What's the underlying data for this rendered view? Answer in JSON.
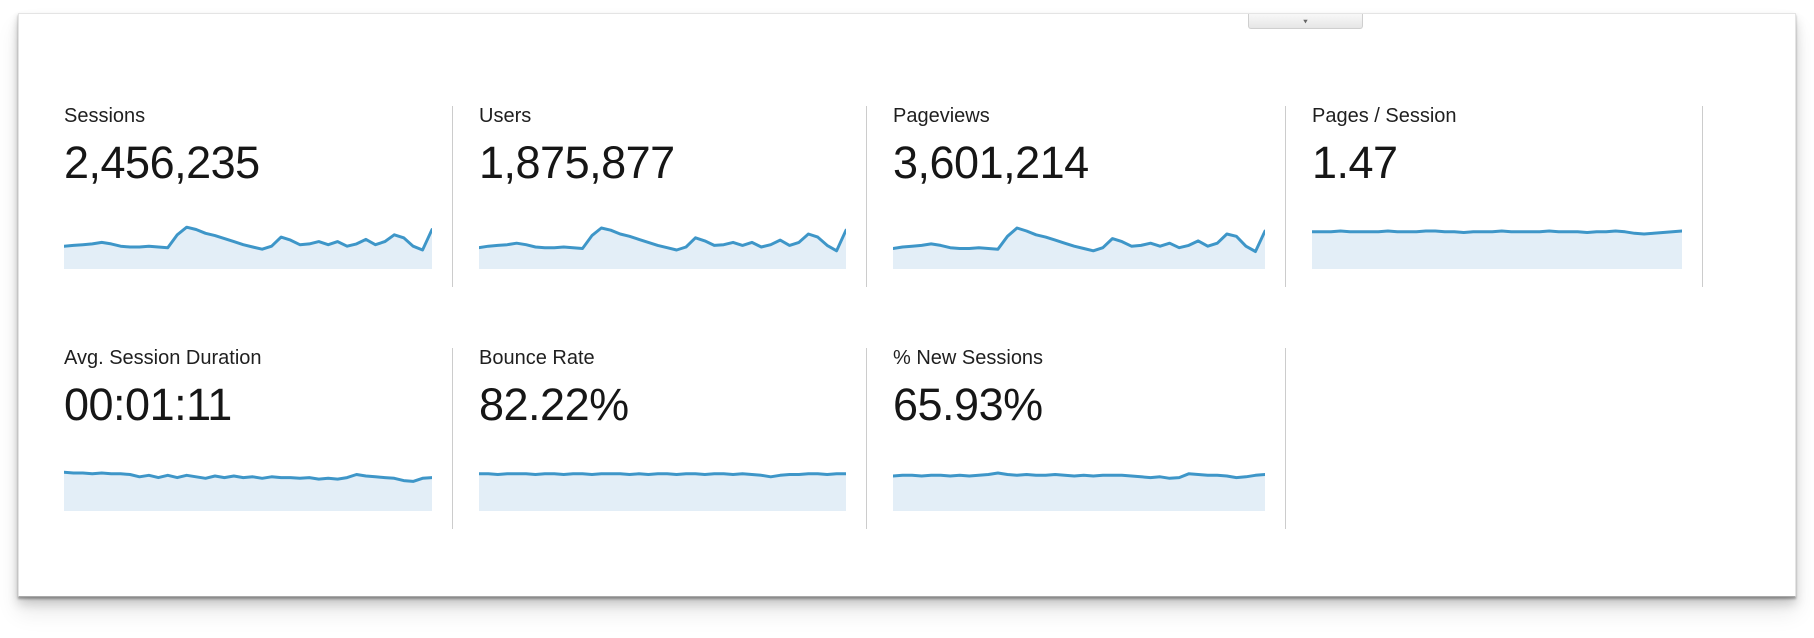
{
  "accent": {
    "line_color": "#3e96c8",
    "fill_color": "#e3eef7",
    "divider_color": "#cccccc"
  },
  "collapse_tab": {
    "chevron_icon": "▾"
  },
  "metrics": {
    "row1": [
      {
        "label": "Sessions",
        "value": "2,456,235",
        "sparkline": [
          30,
          31,
          32,
          33,
          35,
          33,
          30,
          29,
          29,
          30,
          29,
          28,
          45,
          55,
          52,
          47,
          44,
          40,
          36,
          32,
          29,
          26,
          30,
          42,
          38,
          32,
          33,
          36,
          32,
          36,
          30,
          33,
          39,
          32,
          36,
          45,
          41,
          30,
          25,
          52
        ]
      },
      {
        "label": "Users",
        "value": "1,875,877",
        "sparkline": [
          28,
          30,
          31,
          32,
          34,
          32,
          29,
          28,
          28,
          29,
          28,
          27,
          44,
          54,
          51,
          46,
          43,
          39,
          35,
          31,
          28,
          25,
          29,
          41,
          37,
          31,
          32,
          35,
          31,
          35,
          29,
          32,
          38,
          31,
          35,
          46,
          42,
          31,
          24,
          51
        ]
      },
      {
        "label": "Pageviews",
        "value": "3,601,214",
        "sparkline": [
          27,
          29,
          30,
          31,
          33,
          31,
          28,
          27,
          27,
          28,
          27,
          26,
          43,
          54,
          50,
          45,
          42,
          38,
          34,
          30,
          27,
          24,
          28,
          40,
          36,
          30,
          31,
          34,
          30,
          34,
          28,
          31,
          37,
          30,
          34,
          46,
          43,
          30,
          23,
          50
        ]
      },
      {
        "label": "Pages / Session",
        "value": "1.47",
        "sparkline": [
          49,
          49,
          49,
          50,
          49,
          49,
          49,
          49,
          50,
          49,
          49,
          49,
          50,
          50,
          49,
          49,
          48,
          49,
          49,
          49,
          50,
          49,
          49,
          49,
          49,
          50,
          49,
          49,
          49,
          48,
          49,
          49,
          50,
          49,
          47,
          46,
          47,
          48,
          49,
          50
        ]
      }
    ],
    "row2": [
      {
        "label": "Avg. Session Duration",
        "value": "00:01:11",
        "sparkline": [
          51,
          50,
          50,
          49,
          50,
          49,
          49,
          48,
          45,
          47,
          44,
          47,
          44,
          47,
          45,
          43,
          46,
          44,
          46,
          44,
          45,
          43,
          45,
          44,
          44,
          43,
          44,
          42,
          43,
          42,
          44,
          48,
          46,
          45,
          44,
          43,
          40,
          39,
          43,
          44
        ]
      },
      {
        "label": "Bounce Rate",
        "value": "82.22%",
        "sparkline": [
          49,
          49,
          48,
          49,
          49,
          49,
          48,
          49,
          49,
          48,
          49,
          49,
          48,
          49,
          49,
          49,
          48,
          49,
          48,
          49,
          49,
          48,
          49,
          49,
          48,
          49,
          49,
          48,
          49,
          48,
          47,
          45,
          47,
          48,
          48,
          49,
          49,
          48,
          49,
          49
        ]
      },
      {
        "label": "% New Sessions",
        "value": "65.93%",
        "sparkline": [
          46,
          47,
          47,
          46,
          47,
          47,
          46,
          47,
          46,
          47,
          48,
          50,
          48,
          47,
          48,
          47,
          47,
          48,
          47,
          46,
          47,
          46,
          47,
          47,
          47,
          46,
          45,
          44,
          45,
          43,
          44,
          49,
          48,
          47,
          47,
          46,
          44,
          45,
          47,
          48
        ]
      }
    ]
  }
}
